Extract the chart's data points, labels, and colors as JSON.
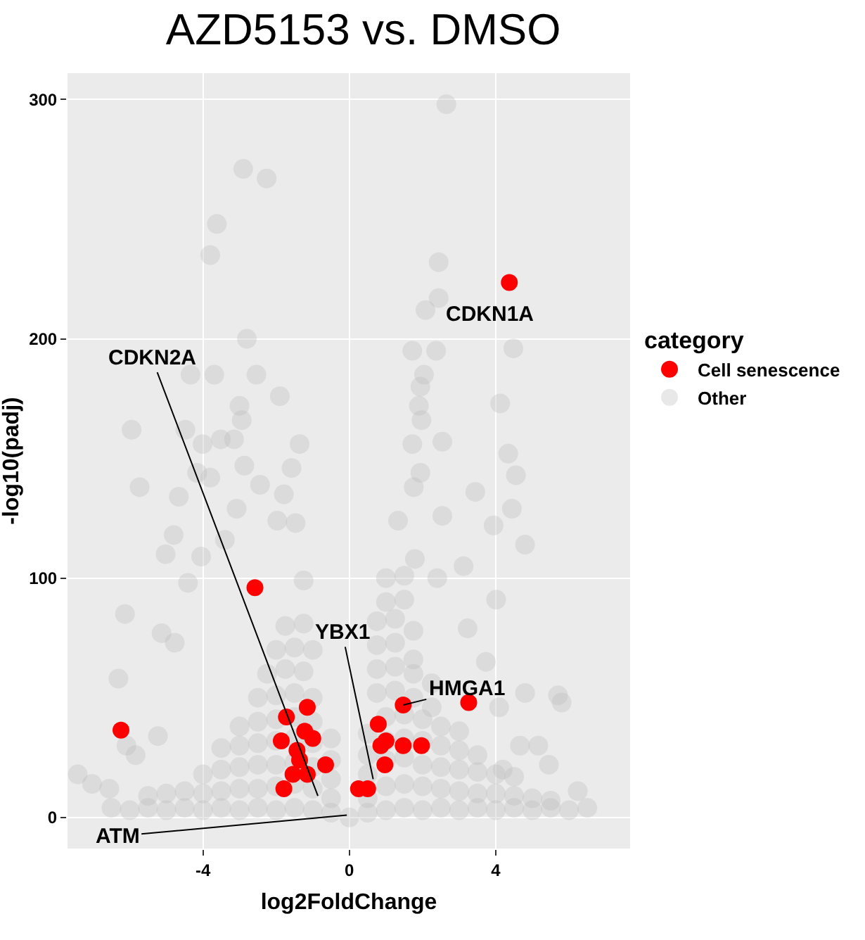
{
  "chart_data": {
    "type": "scatter",
    "title": "AZD5153 vs. DMSO",
    "xlabel": "log2FoldChange",
    "ylabel": "-log10(padj)",
    "legend_title": "category",
    "xlim": [
      -7.7,
      7.67
    ],
    "xticks": [
      -4,
      0,
      4
    ],
    "ylim": [
      -13,
      311
    ],
    "yticks": [
      0,
      100,
      200,
      300
    ],
    "grid": true,
    "legend": "right",
    "marker": "circle",
    "series": [
      {
        "name": "Other",
        "color": "#bebebe",
        "x": [
          2.65,
          -2.9,
          -2.26,
          -3.62,
          -3.8,
          2.44,
          2.44,
          2.08,
          -2.8,
          4.48,
          1.72,
          2.37,
          -4.34,
          -3.69,
          -2.54,
          2.04,
          1.94,
          -1.9,
          -3.0,
          4.12,
          1.9,
          -2.94,
          1.97,
          -5.95,
          -4.48,
          -4.01,
          -3.51,
          -3.15,
          -1.36,
          1.72,
          2.54,
          4.34,
          -5.73,
          -4.66,
          -4.16,
          -3.8,
          -2.87,
          -1.58,
          -1.79,
          -2.44,
          1.94,
          1.76,
          4.55,
          4.44,
          3.44,
          3.94,
          4.8,
          2.54,
          3.12,
          4.01,
          -6.13,
          -6.31,
          -4.8,
          -5.02,
          -4.41,
          -5.13,
          -4.77,
          -4.05,
          -3.4,
          -3.08,
          -1.97,
          -1.47,
          -1.25,
          1.33,
          1.79,
          2.4,
          3.23,
          4.8,
          5.7,
          5.8,
          5.16,
          5.45,
          6.24,
          -7.42,
          -7.03,
          -6.56,
          -5.84,
          -6.09,
          -5.23,
          3.73,
          4.09,
          4.66,
          4.19,
          -6.5,
          -6,
          -5.5,
          -5,
          -4.5,
          -4,
          -3.5,
          -3,
          -2.5,
          -2,
          -1.5,
          -1,
          -0.5,
          0,
          0.5,
          1,
          1.5,
          2,
          2.5,
          3,
          3.5,
          4,
          4.5,
          5,
          5.5,
          6,
          6.5,
          -5.5,
          -5,
          -4.5,
          -4,
          -3.5,
          -3,
          -2.5,
          -2,
          -1.5,
          -1,
          -0.5,
          0.5,
          1,
          1.5,
          2,
          2.5,
          3,
          3.5,
          4,
          4.5,
          5,
          5.5,
          -4,
          -3.5,
          -3,
          -2.5,
          -2,
          -1.5,
          -1,
          -0.5,
          0.5,
          1,
          1.5,
          2,
          2.5,
          3,
          3.5,
          4,
          4.5,
          -3.5,
          -3,
          -2.5,
          -2,
          -1.5,
          -1,
          -0.5,
          0.5,
          1,
          1.5,
          2,
          2.5,
          3,
          3.5,
          -3,
          -2.5,
          -2,
          -1.5,
          -1,
          -0.5,
          0.5,
          1,
          1.5,
          2,
          2.5,
          3,
          -2.5,
          -2,
          -1.5,
          -1,
          0.75,
          1.25,
          1.75,
          2.25,
          -2.25,
          -1.75,
          -1.25,
          0.75,
          1.25,
          1.75,
          2.25,
          -2,
          -1.5,
          -1,
          0.75,
          1.25,
          1.75,
          -1.75,
          -1.25,
          0.75,
          1.25,
          1.75,
          1,
          1.5,
          1,
          1.5
        ],
        "values": [
          298,
          271,
          267,
          248,
          235,
          232,
          217,
          212,
          200,
          196,
          195,
          195,
          185,
          185,
          185,
          185,
          180,
          176,
          172,
          173,
          172,
          166,
          166,
          162,
          162,
          156,
          158,
          158,
          156,
          156,
          157,
          152,
          138,
          134,
          144,
          142,
          147,
          146,
          135,
          139,
          144,
          138,
          143,
          129,
          136,
          122,
          114,
          126,
          105,
          91,
          85,
          58,
          118,
          110,
          98,
          77,
          73,
          109,
          116,
          129,
          124,
          123,
          99,
          124,
          108,
          100,
          79,
          52,
          51,
          48,
          30,
          22,
          11,
          18,
          14,
          12,
          26,
          30,
          34,
          65,
          46,
          30,
          20,
          4,
          3,
          4,
          3,
          4,
          3,
          4,
          3,
          4,
          3,
          4,
          3,
          2,
          0,
          2,
          3,
          4,
          3,
          4,
          3,
          4,
          3,
          4,
          3,
          4,
          3,
          4,
          9,
          10,
          11,
          10,
          11,
          12,
          12,
          13,
          14,
          12,
          8,
          8,
          13,
          14,
          13,
          12,
          11,
          10,
          10,
          9,
          8,
          7,
          18,
          20,
          21,
          22,
          22,
          23,
          21,
          16,
          18,
          24,
          25,
          22,
          21,
          20,
          19,
          18,
          17,
          29,
          30,
          31,
          32,
          33,
          31,
          24,
          26,
          32,
          33,
          32,
          30,
          28,
          26,
          38,
          40,
          41,
          42,
          40,
          33,
          35,
          42,
          43,
          41,
          38,
          36,
          50,
          51,
          52,
          50,
          52,
          53,
          50,
          46,
          60,
          62,
          61,
          62,
          63,
          60,
          56,
          70,
          71,
          70,
          72,
          73,
          66,
          80,
          81,
          82,
          83,
          78,
          90,
          91,
          100,
          101
        ]
      },
      {
        "name": "Cell senescence",
        "color": "#ff0000",
        "x": [
          4.37,
          -6.24,
          -2.58,
          -1.15,
          -1.72,
          -1.22,
          -1.86,
          -1.0,
          -1.43,
          -1.36,
          -0.65,
          -1.15,
          -1.54,
          -1.79,
          0.25,
          0.5,
          0.79,
          0.86,
          1.0,
          0.97,
          1.47,
          1.47,
          1.97,
          3.26
        ],
        "values": [
          223.5,
          36.5,
          96,
          46,
          42,
          36,
          32,
          33,
          28,
          24,
          22,
          18,
          18,
          12,
          12,
          12,
          39,
          30,
          32,
          22,
          47,
          30,
          30,
          48
        ]
      }
    ],
    "annotations": [
      {
        "text": "CDKN1A",
        "x": 4.37,
        "y": 223.5
      },
      {
        "text": "CDKN2A",
        "x": -0.86,
        "y": 9
      },
      {
        "text": "YBX1",
        "x": 0.65,
        "y": 16
      },
      {
        "text": "HMGA1",
        "x": 1.47,
        "y": 47
      },
      {
        "text": "ATM",
        "x": -0.07,
        "y": 1
      }
    ]
  }
}
